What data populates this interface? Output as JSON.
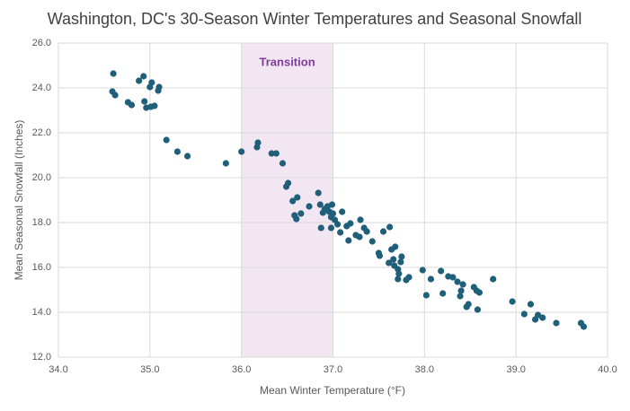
{
  "chart_data": {
    "type": "scatter",
    "title": "Washington, DC's 30-Season Winter Temperatures and Seasonal Snowfall",
    "x_label": "Mean Winter Temperature  (°F)",
    "y_label": "Mean Seasonal Snowfall (Inches)",
    "color": "#1f5f7a",
    "grid": true,
    "band": {
      "range": [
        36,
        37
      ],
      "label": "Transition",
      "color": "#f3e6f3",
      "label_color": "#7e3a9a"
    },
    "xlim": [
      34,
      40
    ],
    "xticks": [
      {
        "value": 34,
        "label": "34.0"
      },
      {
        "value": 35,
        "label": "35.0"
      },
      {
        "value": 36,
        "label": "36.0"
      },
      {
        "value": 37,
        "label": "37.0"
      },
      {
        "value": 38,
        "label": "38.0"
      },
      {
        "value": 39,
        "label": "39.0"
      },
      {
        "value": 40,
        "label": "40.0"
      }
    ],
    "ylim": [
      12,
      26
    ],
    "yticks": [
      {
        "value": 12,
        "label": "12.0"
      },
      {
        "value": 14,
        "label": "14.0"
      },
      {
        "value": 16,
        "label": "16.0"
      },
      {
        "value": 18,
        "label": "18.0"
      },
      {
        "value": 20,
        "label": "20.0"
      },
      {
        "value": 22,
        "label": "22.0"
      },
      {
        "value": 24,
        "label": "24.0"
      },
      {
        "value": 26,
        "label": "26.0"
      }
    ],
    "x": [
      34.6,
      34.59,
      34.62,
      34.76,
      34.8,
      34.88,
      34.93,
      34.94,
      34.96,
      35.0,
      35.02,
      35.01,
      35.05,
      35.09,
      35.1,
      35.18,
      35.3,
      35.41,
      35.83,
      36.0,
      36.17,
      36.18,
      36.33,
      36.38,
      36.45,
      36.49,
      36.51,
      36.56,
      36.61,
      36.58,
      36.6,
      36.65,
      36.74,
      36.84,
      36.86,
      36.89,
      36.91,
      36.94,
      36.99,
      36.96,
      36.98,
      37.0,
      37.02,
      36.98,
      36.87,
      37.05,
      37.08,
      37.1,
      37.15,
      37.19,
      37.17,
      37.25,
      37.29,
      37.3,
      37.34,
      37.37,
      37.43,
      37.5,
      37.51,
      37.55,
      37.62,
      37.61,
      37.64,
      37.68,
      37.66,
      37.67,
      37.71,
      37.72,
      37.74,
      37.75,
      37.71,
      37.8,
      37.83,
      37.98,
      38.02,
      38.07,
      38.18,
      38.2,
      38.26,
      38.31,
      38.36,
      38.39,
      38.42,
      38.4,
      38.46,
      38.48,
      38.54,
      38.57,
      38.6,
      38.58,
      38.75,
      38.96,
      39.09,
      39.16,
      39.21,
      39.24,
      39.29,
      39.44,
      39.71,
      39.74
    ],
    "values": [
      24.64,
      23.84,
      23.68,
      23.36,
      23.24,
      24.32,
      24.52,
      23.4,
      23.12,
      24.04,
      24.24,
      23.16,
      23.2,
      23.88,
      24.04,
      21.68,
      21.16,
      20.96,
      20.64,
      21.16,
      21.36,
      21.56,
      21.08,
      21.08,
      20.64,
      19.6,
      19.76,
      18.96,
      19.12,
      18.32,
      18.16,
      18.4,
      18.72,
      19.32,
      18.8,
      18.44,
      18.6,
      18.72,
      18.8,
      18.48,
      18.24,
      18.4,
      18.12,
      17.76,
      17.76,
      17.92,
      17.56,
      18.48,
      17.84,
      17.96,
      17.2,
      17.44,
      17.36,
      18.12,
      17.76,
      17.6,
      17.16,
      16.64,
      16.52,
      17.6,
      17.8,
      16.2,
      16.8,
      16.92,
      16.36,
      16.08,
      15.92,
      15.72,
      16.24,
      16.48,
      15.48,
      15.44,
      15.56,
      15.88,
      14.76,
      15.48,
      15.84,
      14.84,
      15.6,
      15.56,
      15.36,
      14.72,
      15.24,
      14.96,
      14.24,
      14.36,
      15.12,
      14.96,
      14.88,
      14.12,
      15.48,
      14.48,
      13.92,
      14.36,
      13.68,
      13.88,
      13.76,
      13.52,
      13.52,
      13.36
    ]
  }
}
